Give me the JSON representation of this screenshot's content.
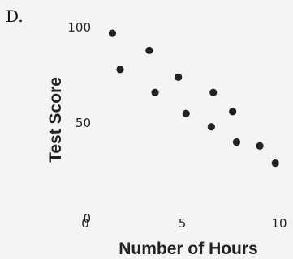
{
  "panel_label": "D.",
  "chart_data": {
    "type": "scatter",
    "title": "",
    "xlabel": "Number of Hours",
    "ylabel": "Test Score",
    "xlim": [
      0,
      10
    ],
    "ylim": [
      0,
      100
    ],
    "x_ticks": [
      0,
      5,
      10
    ],
    "x_tick_labels": [
      "0",
      "5",
      "10"
    ],
    "y_ticks": [
      0,
      50,
      100
    ],
    "y_tick_labels": [
      "0",
      "50",
      "100"
    ],
    "grid": false,
    "legend": "none",
    "point_color": "#222222",
    "points": [
      {
        "x": 1.4,
        "y": 97
      },
      {
        "x": 1.8,
        "y": 78
      },
      {
        "x": 3.3,
        "y": 88
      },
      {
        "x": 3.6,
        "y": 66
      },
      {
        "x": 4.8,
        "y": 74
      },
      {
        "x": 5.2,
        "y": 55
      },
      {
        "x": 6.5,
        "y": 48
      },
      {
        "x": 6.6,
        "y": 66
      },
      {
        "x": 7.6,
        "y": 56
      },
      {
        "x": 7.8,
        "y": 40
      },
      {
        "x": 9.0,
        "y": 38
      },
      {
        "x": 9.8,
        "y": 29
      }
    ]
  }
}
